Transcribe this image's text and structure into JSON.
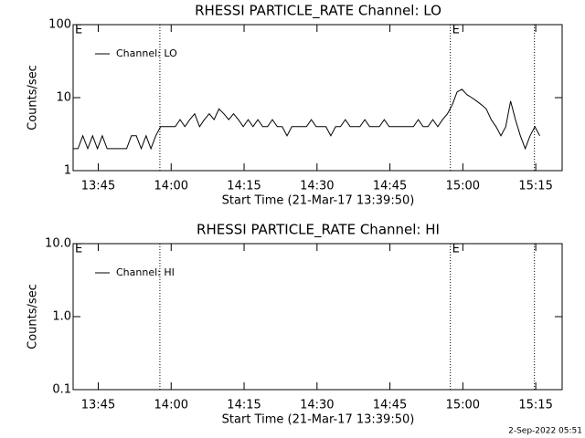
{
  "chart_data": [
    {
      "type": "line",
      "title": "RHESSI PARTICLE_RATE Channel: LO",
      "x_label": "Start Time (21-Mar-17 13:39:50)",
      "y_label": "Counts/sec",
      "x": [
        0,
        1,
        2,
        3,
        4,
        5,
        6,
        7,
        8,
        9,
        10,
        11,
        12,
        13,
        14,
        15,
        16,
        17,
        18,
        19,
        20,
        21,
        22,
        23,
        24,
        25,
        26,
        27,
        28,
        29,
        30,
        31,
        32,
        33,
        34,
        35,
        36,
        37,
        38,
        39,
        40,
        41,
        42,
        43,
        44,
        45,
        46,
        47,
        48,
        49,
        50,
        51,
        52,
        53,
        54,
        55,
        56,
        57,
        58,
        59,
        60,
        61,
        62,
        63,
        64,
        65,
        66,
        67,
        68,
        69,
        70,
        71,
        72,
        73,
        74,
        75,
        76,
        77,
        78,
        79,
        80,
        81,
        82,
        83,
        84,
        85,
        86,
        87,
        88,
        89,
        90,
        91,
        92,
        93,
        94,
        95,
        96
      ],
      "series": [
        {
          "name": "Channel: LO",
          "color": "#000000",
          "values": [
            2,
            2,
            3,
            2,
            3,
            2,
            3,
            2,
            2,
            2,
            2,
            2,
            3,
            3,
            2,
            3,
            2,
            3,
            4,
            4,
            4,
            4,
            5,
            4,
            5,
            6,
            4,
            5,
            6,
            5,
            7,
            6,
            5,
            6,
            5,
            4,
            5,
            4,
            5,
            4,
            4,
            5,
            4,
            4,
            3,
            4,
            4,
            4,
            4,
            5,
            4,
            4,
            4,
            3,
            4,
            4,
            5,
            4,
            4,
            4,
            5,
            4,
            4,
            4,
            5,
            4,
            4,
            4,
            4,
            4,
            4,
            5,
            4,
            4,
            5,
            4,
            5,
            6,
            8,
            12,
            13,
            11,
            10,
            9,
            8,
            7,
            5,
            4,
            3,
            4,
            9,
            5,
            3,
            2,
            3,
            4,
            3
          ]
        }
      ],
      "xlim": [
        0,
        100.6
      ],
      "xticks": [
        {
          "value": 5.17,
          "label": "13:45"
        },
        {
          "value": 20.17,
          "label": "14:00"
        },
        {
          "value": 35.17,
          "label": "14:15"
        },
        {
          "value": 50.17,
          "label": "14:30"
        },
        {
          "value": 65.17,
          "label": "14:45"
        },
        {
          "value": 80.17,
          "label": "15:00"
        },
        {
          "value": 95.17,
          "label": "15:15"
        }
      ],
      "ylim": [
        1,
        100
      ],
      "yticks": [
        1,
        10,
        100
      ],
      "log_y": true,
      "legend": "upper left",
      "markers": [
        17.85,
        77.6,
        94.9
      ],
      "annotations": [
        {
          "x": 0,
          "text": "E"
        },
        {
          "x": 77.6,
          "text": "E"
        }
      ]
    },
    {
      "type": "line",
      "title": "RHESSI PARTICLE_RATE Channel: HI",
      "x_label": "Start Time (21-Mar-17 13:39:50)",
      "y_label": "Counts/sec",
      "x": [],
      "series": [
        {
          "name": "Channel: HI",
          "color": "#000000",
          "values": []
        }
      ],
      "xlim": [
        0,
        100.6
      ],
      "xticks": [
        {
          "value": 5.17,
          "label": "13:45"
        },
        {
          "value": 20.17,
          "label": "14:00"
        },
        {
          "value": 35.17,
          "label": "14:15"
        },
        {
          "value": 50.17,
          "label": "14:30"
        },
        {
          "value": 65.17,
          "label": "14:45"
        },
        {
          "value": 80.17,
          "label": "15:00"
        },
        {
          "value": 95.17,
          "label": "15:15"
        }
      ],
      "ylim": [
        0.1,
        10
      ],
      "yticks": [
        {
          "value": 0.1,
          "label": "0.1"
        },
        {
          "value": 1,
          "label": "1.0"
        },
        {
          "value": 10,
          "label": "10.0"
        }
      ],
      "log_y": true,
      "legend": "upper left",
      "markers": [
        17.85,
        77.6,
        94.9
      ],
      "annotations": [
        {
          "x": 0,
          "text": "E"
        },
        {
          "x": 77.6,
          "text": "E"
        }
      ]
    }
  ],
  "footer": "2-Sep-2022 05:51"
}
